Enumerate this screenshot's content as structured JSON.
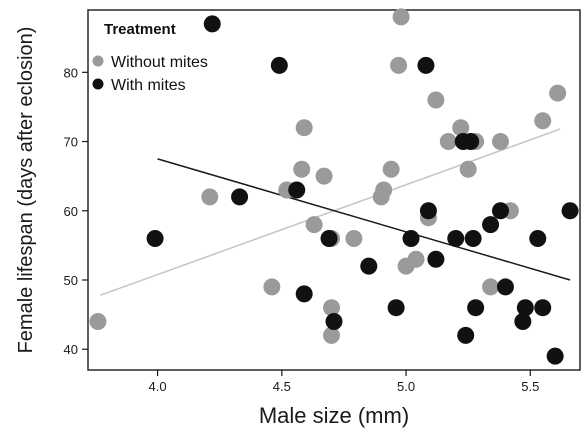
{
  "chart_data": {
    "type": "scatter",
    "xlabel": "Male size (mm)",
    "ylabel": "Female lifespan (days after eclosion)",
    "xlim": [
      3.72,
      5.7
    ],
    "ylim": [
      37,
      89
    ],
    "x_ticks": [
      "4.0",
      "4.5",
      "5.0",
      "5.5"
    ],
    "y_ticks": [
      "40",
      "50",
      "60",
      "70",
      "80"
    ],
    "grid": false,
    "legend": {
      "title": "Treatment",
      "placement": "top-left"
    },
    "series": [
      {
        "name": "Without mites",
        "color": "#9a9a9a",
        "points": [
          [
            3.76,
            44
          ],
          [
            4.21,
            62
          ],
          [
            4.46,
            49
          ],
          [
            4.52,
            63
          ],
          [
            4.58,
            66
          ],
          [
            4.59,
            72
          ],
          [
            4.63,
            58
          ],
          [
            4.67,
            65
          ],
          [
            4.7,
            56
          ],
          [
            4.7,
            46
          ],
          [
            4.7,
            42
          ],
          [
            4.79,
            56
          ],
          [
            4.9,
            62
          ],
          [
            4.91,
            63
          ],
          [
            4.94,
            66
          ],
          [
            4.97,
            81
          ],
          [
            5.0,
            52
          ],
          [
            5.04,
            53
          ],
          [
            4.98,
            88
          ],
          [
            5.09,
            59
          ],
          [
            5.12,
            76
          ],
          [
            5.17,
            70
          ],
          [
            5.22,
            72
          ],
          [
            5.25,
            66
          ],
          [
            5.28,
            70
          ],
          [
            5.34,
            49
          ],
          [
            5.38,
            70
          ],
          [
            5.42,
            60
          ],
          [
            5.55,
            73
          ],
          [
            5.61,
            77
          ]
        ]
      },
      {
        "name": "With mites",
        "color": "#111111",
        "points": [
          [
            3.99,
            56
          ],
          [
            4.22,
            87
          ],
          [
            4.33,
            62
          ],
          [
            4.49,
            81
          ],
          [
            4.56,
            63
          ],
          [
            4.59,
            48
          ],
          [
            4.69,
            56
          ],
          [
            4.71,
            44
          ],
          [
            4.85,
            52
          ],
          [
            4.96,
            46
          ],
          [
            5.02,
            56
          ],
          [
            5.08,
            81
          ],
          [
            5.09,
            60
          ],
          [
            5.12,
            53
          ],
          [
            5.2,
            56
          ],
          [
            5.23,
            70
          ],
          [
            5.24,
            42
          ],
          [
            5.26,
            70
          ],
          [
            5.27,
            56
          ],
          [
            5.28,
            46
          ],
          [
            5.34,
            58
          ],
          [
            5.38,
            60
          ],
          [
            5.4,
            49
          ],
          [
            5.47,
            44
          ],
          [
            5.48,
            46
          ],
          [
            5.53,
            56
          ],
          [
            5.55,
            46
          ],
          [
            5.6,
            39
          ],
          [
            5.66,
            60
          ]
        ]
      }
    ],
    "trend_lines": [
      {
        "series": "Without mites",
        "color": "#c4c4c4",
        "x": [
          3.77,
          5.62
        ],
        "y": [
          47.8,
          71.8
        ]
      },
      {
        "series": "With mites",
        "color": "#1a1a1a",
        "x": [
          4.0,
          5.66
        ],
        "y": [
          67.5,
          50.0
        ]
      }
    ]
  }
}
